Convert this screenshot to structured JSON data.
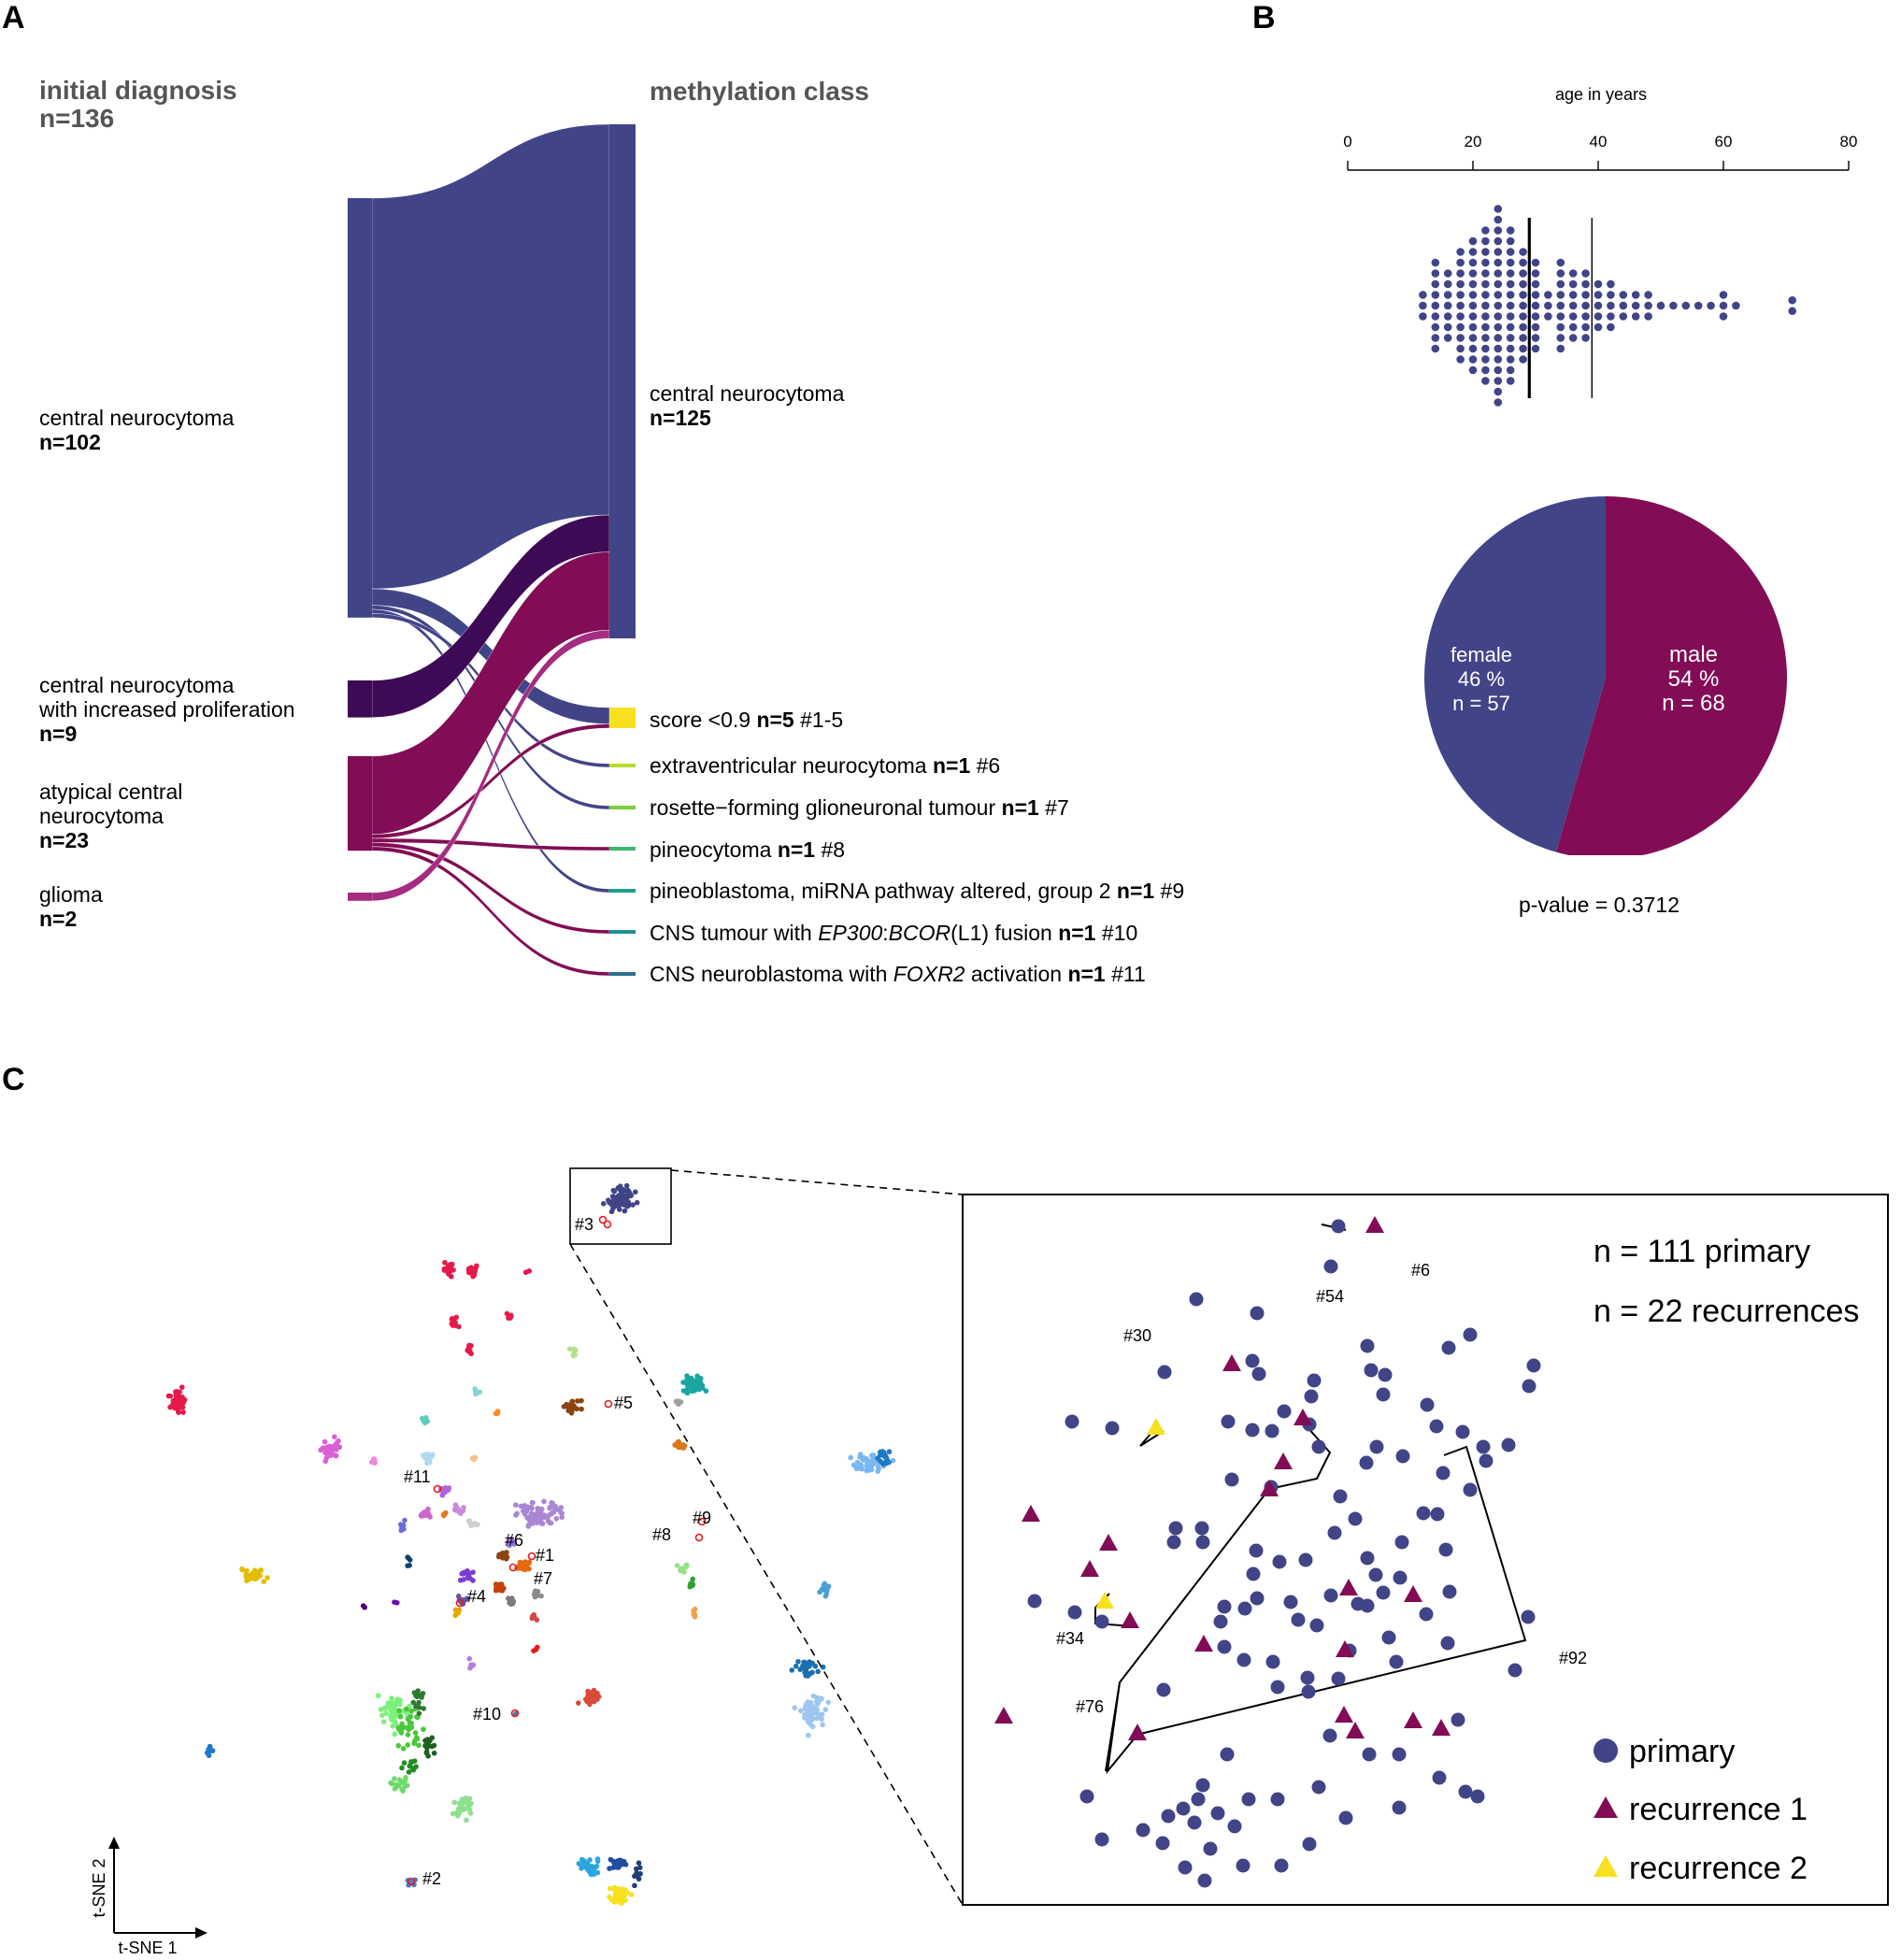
{
  "panels": {
    "a": "A",
    "b": "B",
    "c": "C"
  },
  "sankey": {
    "left_header": "initial diagnosis",
    "left_n": "n=136",
    "right_header": "methylation class",
    "left_nodes": [
      {
        "label": "central neurocytoma",
        "label2": "",
        "n": "n=102",
        "color": "#414487",
        "value": 102
      },
      {
        "label": "central neurocytoma",
        "label2": "with increased proliferation",
        "n": "n=9",
        "color": "#3f0a55",
        "value": 9
      },
      {
        "label": "atypical central",
        "label2": "neurocytoma",
        "n": "n=23",
        "color": "#820c55",
        "value": 23
      },
      {
        "label": "glioma",
        "label2": "",
        "n": "n=2",
        "color": "#a52c80",
        "value": 2
      }
    ],
    "right_nodes": [
      {
        "pre": "central neurocytoma",
        "italic1": "",
        "mid": "",
        "italic2": "",
        "post": "",
        "n": "n=125",
        "tag": "",
        "color": "#414487",
        "value": 125
      },
      {
        "pre": "score <0.9 ",
        "italic1": "",
        "mid": "",
        "italic2": "",
        "post": "",
        "n": "n=5",
        "tag": " #1-5",
        "color": "#f7e01e",
        "value": 5
      },
      {
        "pre": "extraventricular neurocytoma ",
        "italic1": "",
        "mid": "",
        "italic2": "",
        "post": "",
        "n": "n=1",
        "tag": " #6",
        "color": "#b9dc2a",
        "value": 1
      },
      {
        "pre": "rosette−forming glioneuronal tumour ",
        "italic1": "",
        "mid": "",
        "italic2": "",
        "post": "",
        "n": "n=1",
        "tag": " #7",
        "color": "#7dcd3e",
        "value": 1
      },
      {
        "pre": "pineocytoma ",
        "italic1": "",
        "mid": "",
        "italic2": "",
        "post": "",
        "n": "n=1",
        "tag": " #8",
        "color": "#3ab66b",
        "value": 1
      },
      {
        "pre": "pineoblastoma, miRNA pathway altered, group 2 ",
        "italic1": "",
        "mid": "",
        "italic2": "",
        "post": "",
        "n": "n=1",
        "tag": " #9",
        "color": "#1fa088",
        "value": 1
      },
      {
        "pre": "CNS tumour with ",
        "italic1": "EP300",
        "mid": ":",
        "italic2": "BCOR",
        "post": "(L1) fusion ",
        "n": "n=1",
        "tag": " #10",
        "color": "#218e8d",
        "value": 1
      },
      {
        "pre": "CNS neuroblastoma with ",
        "italic1": "FOXR2",
        "mid": " activation ",
        "italic2": "",
        "post": "",
        "n": "n=1",
        "tag": " #11",
        "color": "#2d708e",
        "value": 1
      }
    ],
    "flows": [
      {
        "from": 0,
        "to": 0,
        "value": 95
      },
      {
        "from": 0,
        "to": 1,
        "value": 4
      },
      {
        "from": 0,
        "to": 3,
        "value": 1
      },
      {
        "from": 0,
        "to": 5,
        "value": 1
      },
      {
        "from": 0,
        "to": 2,
        "value": 1
      },
      {
        "from": 1,
        "to": 0,
        "value": 9
      },
      {
        "from": 2,
        "to": 0,
        "value": 19
      },
      {
        "from": 2,
        "to": 1,
        "value": 1
      },
      {
        "from": 2,
        "to": 4,
        "value": 1
      },
      {
        "from": 2,
        "to": 6,
        "value": 1
      },
      {
        "from": 2,
        "to": 7,
        "value": 1
      },
      {
        "from": 3,
        "to": 0,
        "value": 2
      }
    ]
  },
  "age_plot": {
    "axis_label": "age in years",
    "ticks": [
      "0",
      "20",
      "40",
      "60",
      "80"
    ],
    "median": 29,
    "percentile_line": 39,
    "color": "#414487"
  },
  "pie": {
    "female_label": "female",
    "female_pct": "46 %",
    "female_n": "n = 57",
    "male_label": "male",
    "male_pct": "54 %",
    "male_n": "n = 68",
    "female_value": 57,
    "male_value": 68,
    "female_color": "#414487",
    "male_color": "#820c55",
    "pvalue": "p-value = 0.3712"
  },
  "tsne": {
    "xlabel": "t-SNE 1",
    "ylabel": "t-SNE 2",
    "case_labels": [
      "#1",
      "#2",
      "#3",
      "#4",
      "#5",
      "#6",
      "#7",
      "#8",
      "#9",
      "#10",
      "#11"
    ]
  },
  "zoom": {
    "n_primary": "n = 111 primary",
    "n_recurrences": "n = 22 recurrences",
    "legend": [
      "primary",
      "recurrence 1",
      "recurrence 2"
    ],
    "primary_color": "#414487",
    "recurrence1_color": "#820c55",
    "recurrence2_color": "#f7e01e",
    "case_labels": [
      "#6",
      "#54",
      "#30",
      "#34",
      "#76",
      "#92"
    ]
  },
  "chart_data": [
    {
      "type": "sankey",
      "title": "",
      "source_nodes": [
        "central neurocytoma",
        "central neurocytoma with increased proliferation",
        "atypical central neurocytoma",
        "glioma"
      ],
      "source_values": [
        102,
        9,
        23,
        2
      ],
      "target_nodes": [
        "central neurocytoma",
        "score <0.9",
        "extraventricular neurocytoma",
        "rosette-forming glioneuronal tumour",
        "pineocytoma",
        "pineoblastoma, miRNA pathway altered, group 2",
        "CNS tumour with EP300:BCOR(L1) fusion",
        "CNS neuroblastoma with FOXR2 activation"
      ],
      "target_values": [
        125,
        5,
        1,
        1,
        1,
        1,
        1,
        1
      ]
    },
    {
      "type": "scatter",
      "subtype": "dot-plot",
      "xlabel": "age in years",
      "xlim": [
        0,
        80
      ],
      "median": 29
    },
    {
      "type": "pie",
      "categories": [
        "female",
        "male"
      ],
      "values": [
        57,
        68
      ],
      "percent": [
        46,
        54
      ],
      "annotation": "p-value = 0.3712"
    },
    {
      "type": "scatter",
      "xlabel": "t-SNE 1",
      "ylabel": "t-SNE 2",
      "series": [
        {
          "name": "primary",
          "count": 111
        },
        {
          "name": "recurrence 1"
        },
        {
          "name": "recurrence 2"
        }
      ]
    }
  ]
}
